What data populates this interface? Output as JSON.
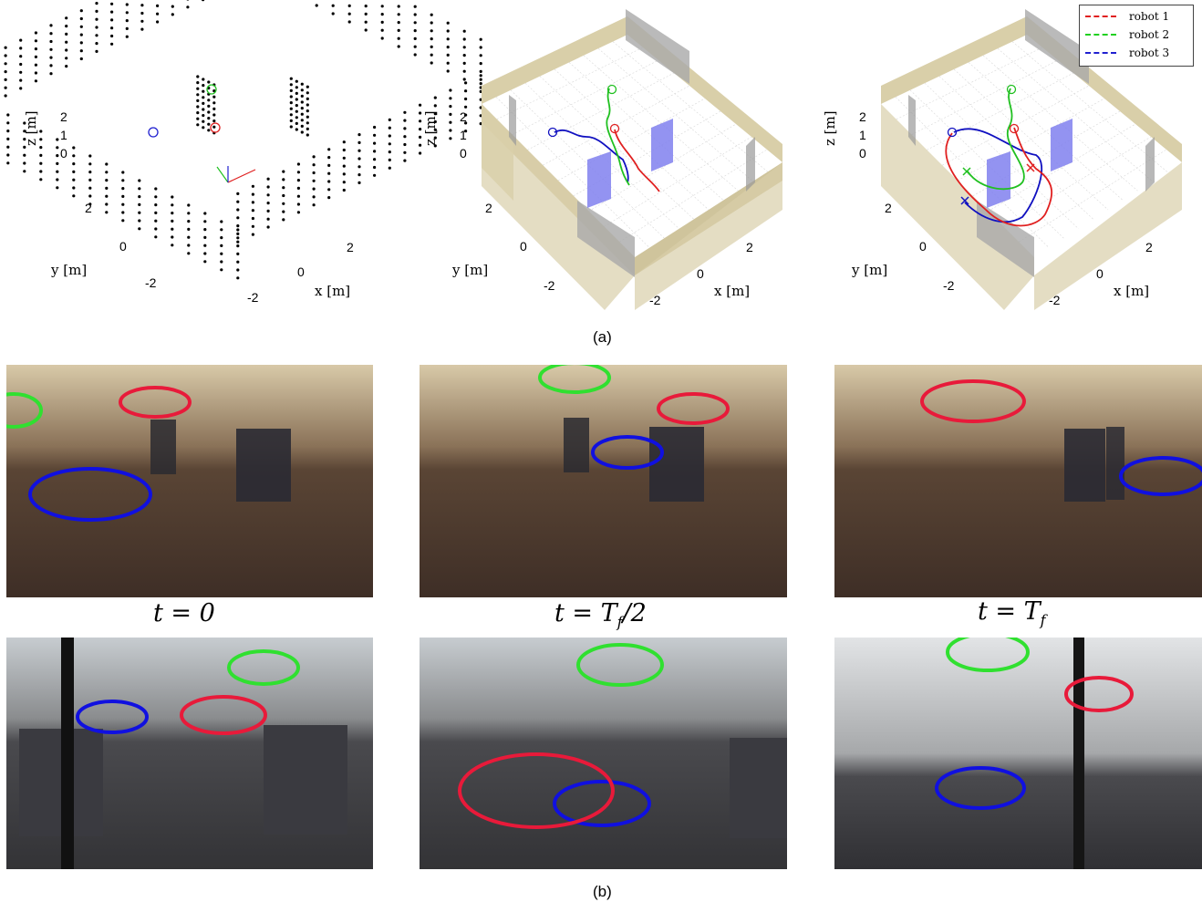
{
  "figure": {
    "caption_a": "(a)",
    "caption_b": "(b)",
    "time_labels": [
      "t = 0",
      "t = T_f/2",
      "t = T_f"
    ]
  },
  "legend": {
    "items": [
      {
        "label": "robot 1",
        "color": "#e02020"
      },
      {
        "label": "robot 2",
        "color": "#20d020"
      },
      {
        "label": "robot 3",
        "color": "#2020d0"
      }
    ]
  },
  "chart_data": [
    {
      "type": "scatter",
      "xlabel": "x [m]",
      "ylabel": "y [m]",
      "zlabel": "z [m]",
      "x_ticks": [
        "-2",
        "0",
        "2"
      ],
      "y_ticks": [
        "-2",
        "0",
        "2"
      ],
      "z_ticks": [
        "0",
        "1",
        "2"
      ],
      "markers": [
        {
          "robot": "robot 1",
          "shape": "circle"
        },
        {
          "robot": "robot 2",
          "shape": "circle"
        },
        {
          "robot": "robot 3",
          "shape": "circle"
        }
      ]
    },
    {
      "type": "line",
      "xlabel": "x [m]",
      "ylabel": "y [m]",
      "zlabel": "z [m]",
      "x_ticks": [
        "-2",
        "0",
        "2"
      ],
      "y_ticks": [
        "-2",
        "0",
        "2"
      ],
      "z_ticks": [
        "0",
        "1",
        "2"
      ],
      "series": [
        {
          "name": "robot 1"
        },
        {
          "name": "robot 2"
        },
        {
          "name": "robot 3"
        }
      ]
    },
    {
      "type": "line",
      "xlabel": "x [m]",
      "ylabel": "y [m]",
      "zlabel": "z [m]",
      "x_ticks": [
        "-2",
        "0",
        "2"
      ],
      "y_ticks": [
        "-2",
        "0",
        "2"
      ],
      "z_ticks": [
        "0",
        "1",
        "2"
      ],
      "legend_position": "top-right",
      "series": [
        {
          "name": "robot 1"
        },
        {
          "name": "robot 2"
        },
        {
          "name": "robot 3"
        }
      ]
    }
  ]
}
